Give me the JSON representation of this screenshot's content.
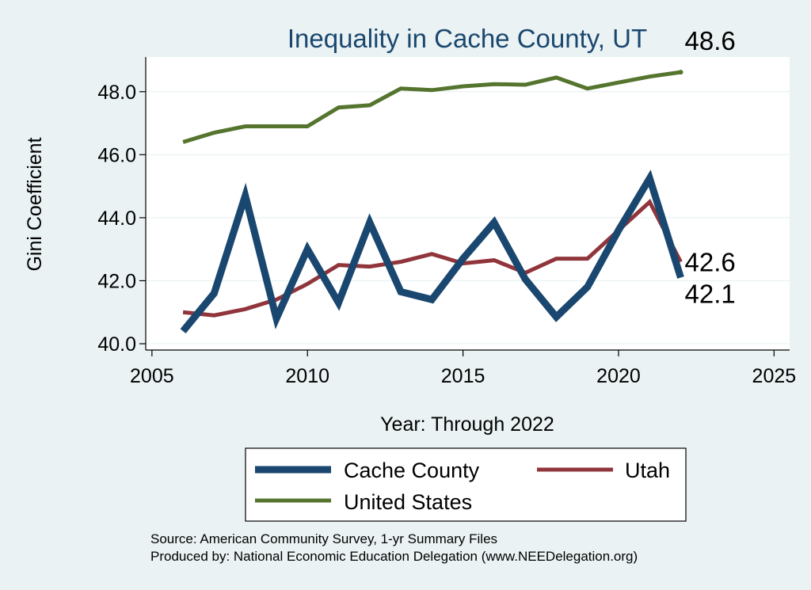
{
  "chart_data": {
    "type": "line",
    "title": "Inequality in Cache County, UT",
    "xlabel": "Year: Through 2022",
    "ylabel": "Gini Coefficient",
    "xlim": [
      2004.8,
      2025.5
    ],
    "ylim": [
      39.8,
      49.1
    ],
    "x_ticks": [
      2005,
      2010,
      2015,
      2020,
      2025
    ],
    "y_ticks": [
      40,
      42,
      44,
      46,
      48
    ],
    "y_tick_labels": [
      "40.0",
      "42.0",
      "44.0",
      "46.0",
      "48.0"
    ],
    "grid": true,
    "x": [
      2006,
      2007,
      2008,
      2009,
      2010,
      2011,
      2012,
      2013,
      2014,
      2015,
      2016,
      2017,
      2018,
      2019,
      2020,
      2021,
      2022
    ],
    "series": [
      {
        "name": "Cache County",
        "color": "#1a476f",
        "values": [
          40.4,
          41.6,
          44.7,
          40.8,
          43.0,
          41.3,
          43.85,
          41.65,
          41.4,
          42.7,
          43.85,
          42.05,
          40.85,
          41.8,
          43.6,
          45.25,
          42.1
        ],
        "end_label": "42.1"
      },
      {
        "name": "Utah",
        "color": "#90353b",
        "values": [
          41.0,
          40.9,
          41.1,
          41.4,
          41.9,
          42.5,
          42.45,
          42.6,
          42.85,
          42.55,
          42.65,
          42.25,
          42.7,
          42.7,
          43.6,
          44.5,
          42.6
        ],
        "end_label": "42.6"
      },
      {
        "name": "United States",
        "color": "#55752f",
        "values": [
          46.4,
          46.7,
          46.9,
          46.9,
          46.9,
          47.5,
          47.57,
          48.1,
          48.05,
          48.17,
          48.24,
          48.22,
          48.45,
          48.1,
          48.29,
          48.48,
          48.62
        ],
        "end_label": "48.6"
      }
    ],
    "legend": {
      "placement": "bottom",
      "entries": [
        "Cache County",
        "Utah",
        "United States"
      ]
    }
  },
  "footer": {
    "source": "Source: American Community Survey, 1-yr Summary Files",
    "produced_by": "Produced by: National Economic Education Delegation (www.NEEDelegation.org)"
  },
  "colors": {
    "background": "#eaf2f3",
    "plot_background": "#ffffff",
    "title": "#1a476f",
    "grid": "#eaf2f3"
  }
}
